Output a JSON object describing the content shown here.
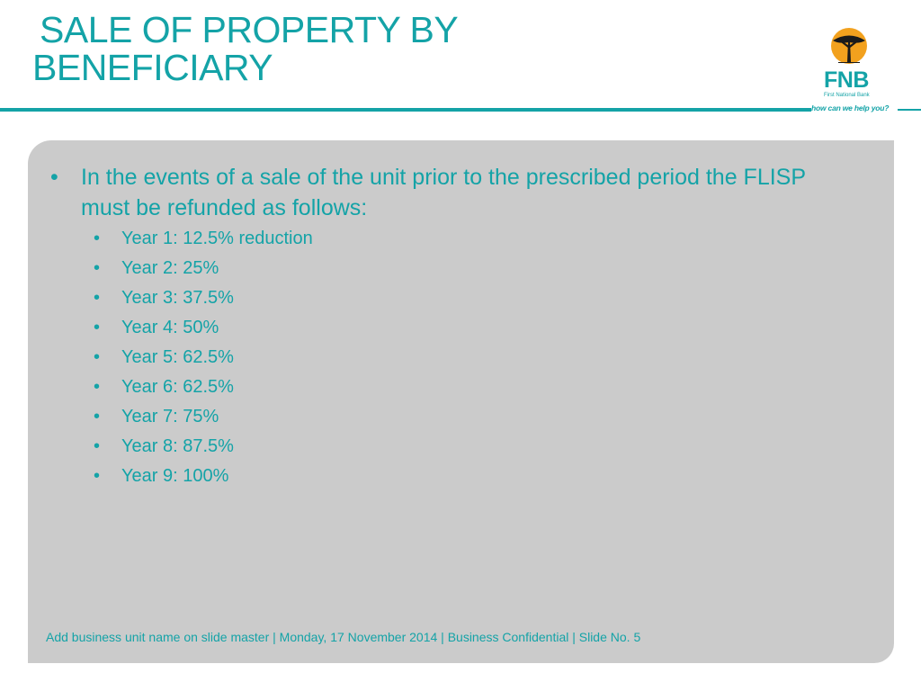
{
  "slide": {
    "title_line1": "SALE OF PROPERTY BY",
    "title_line2": "BENEFICIARY"
  },
  "logo": {
    "icon": "acacia-tree-icon",
    "name": "FNB",
    "subtitle": "First National Bank",
    "tagline": "how can we help you?",
    "colors": {
      "brand_teal": "#14a3a7",
      "tree_orange": "#f2a11e",
      "tree_black": "#1a1a1a"
    }
  },
  "content": {
    "main_bullet": "In the events of a sale of the unit prior to the prescribed period the FLISP must be refunded as follows:",
    "sub_bullets": [
      "Year 1: 12.5% reduction",
      "Year 2: 25%",
      "Year 3: 37.5%",
      "Year 4: 50%",
      "Year 5: 62.5%",
      "Year 6: 62.5%",
      "Year 7: 75%",
      "Year 8: 87.5%",
      "Year 9: 100%"
    ]
  },
  "footer": {
    "text": "Add business unit name on slide master  |  Monday, 17 November 2014  |  Business Confidential  |  Slide No. 5"
  },
  "theme": {
    "accent": "#14a3a7",
    "panel_bg": "#cbcbcb",
    "page_bg": "#ffffff"
  }
}
